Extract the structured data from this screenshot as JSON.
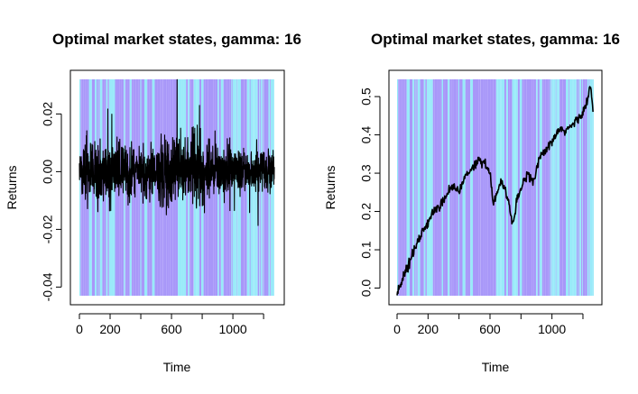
{
  "chart_data": [
    {
      "type": "line",
      "title": "Optimal market states, gamma: 16",
      "xlabel": "Time",
      "ylabel": "Returns",
      "xlim": [
        0,
        1280
      ],
      "ylim": [
        -0.043,
        0.032
      ],
      "xticks": [
        0,
        200,
        600,
        1000
      ],
      "xtick_labels": [
        "0",
        "200",
        "600",
        "1000"
      ],
      "yticks": [
        -0.04,
        -0.02,
        0.0,
        0.02
      ],
      "ytick_labels": [
        "-0.04",
        "-0.02",
        "0.00",
        "0.02"
      ],
      "grid": false,
      "background_states": {
        "colors": [
          "#a897f9",
          "#99eaf9"
        ],
        "n_segments": 150
      },
      "series": [
        {
          "color": "#000000",
          "kind": "daily_returns",
          "n_points": 1270,
          "range": [
            -0.043,
            0.032
          ]
        }
      ]
    },
    {
      "type": "line",
      "title": "Optimal market states, gamma: 16",
      "xlabel": "Time",
      "ylabel": "Returns",
      "xlim": [
        0,
        1280
      ],
      "ylim": [
        -0.02,
        0.545
      ],
      "xticks": [
        0,
        200,
        600,
        1000
      ],
      "xtick_labels": [
        "0",
        "200",
        "600",
        "1000"
      ],
      "yticks": [
        0.0,
        0.1,
        0.2,
        0.3,
        0.4,
        0.5
      ],
      "ytick_labels": [
        "0.0",
        "0.1",
        "0.2",
        "0.3",
        "0.4",
        "0.5"
      ],
      "grid": false,
      "background_states": {
        "colors": [
          "#a897f9",
          "#99eaf9"
        ],
        "n_segments": 150
      },
      "series": [
        {
          "color": "#000000",
          "kind": "cumulative_returns",
          "points": [
            [
              0,
              -0.01
            ],
            [
              15,
              0.0
            ],
            [
              30,
              0.02
            ],
            [
              50,
              0.04
            ],
            [
              80,
              0.07
            ],
            [
              120,
              0.11
            ],
            [
              160,
              0.14
            ],
            [
              200,
              0.17
            ],
            [
              240,
              0.2
            ],
            [
              280,
              0.22
            ],
            [
              320,
              0.24
            ],
            [
              360,
              0.27
            ],
            [
              400,
              0.25
            ],
            [
              440,
              0.29
            ],
            [
              480,
              0.31
            ],
            [
              520,
              0.33
            ],
            [
              560,
              0.33
            ],
            [
              600,
              0.3
            ],
            [
              620,
              0.22
            ],
            [
              640,
              0.24
            ],
            [
              670,
              0.28
            ],
            [
              700,
              0.26
            ],
            [
              720,
              0.22
            ],
            [
              750,
              0.16
            ],
            [
              770,
              0.22
            ],
            [
              800,
              0.26
            ],
            [
              840,
              0.3
            ],
            [
              880,
              0.28
            ],
            [
              920,
              0.34
            ],
            [
              960,
              0.36
            ],
            [
              1000,
              0.38
            ],
            [
              1040,
              0.41
            ],
            [
              1080,
              0.41
            ],
            [
              1120,
              0.42
            ],
            [
              1160,
              0.44
            ],
            [
              1200,
              0.46
            ],
            [
              1230,
              0.49
            ],
            [
              1250,
              0.53
            ],
            [
              1265,
              0.46
            ]
          ]
        }
      ]
    }
  ]
}
